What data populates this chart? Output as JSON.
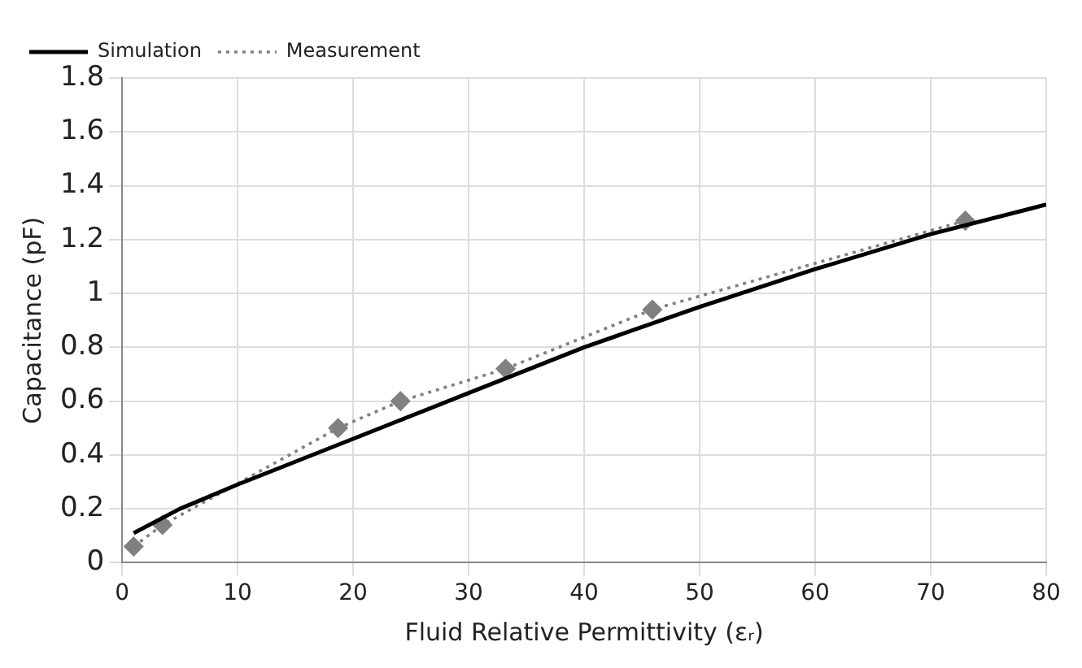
{
  "chart_data": {
    "type": "line",
    "xlabel": "Fluid Relative Permittivity (εᵣ)",
    "ylabel": "Capacitance (pF)",
    "xlim": [
      0,
      80
    ],
    "xticks": [
      0,
      10,
      20,
      30,
      40,
      50,
      60,
      70,
      80
    ],
    "ylim": [
      0,
      1.8
    ],
    "yticks": [
      0,
      0.2,
      0.4,
      0.6,
      0.8,
      1,
      1.2,
      1.4,
      1.6,
      1.8
    ],
    "grid": true,
    "legend": "top left",
    "series": [
      {
        "name": "Simulation",
        "color": "#000000",
        "marker": "none",
        "line_style": "solid",
        "x": [
          1,
          5,
          10,
          20,
          30,
          40,
          50,
          60,
          70,
          80
        ],
        "values": [
          0.11,
          0.2,
          0.29,
          0.46,
          0.63,
          0.8,
          0.95,
          1.09,
          1.22,
          1.33
        ]
      },
      {
        "name": "Measurement",
        "color": "#808080",
        "marker": "diamond",
        "line_style": "dotted",
        "x": [
          1,
          3.5,
          18.7,
          24.1,
          33.2,
          45.9,
          73
        ],
        "values": [
          0.06,
          0.14,
          0.5,
          0.6,
          0.72,
          0.94,
          1.27
        ]
      }
    ]
  }
}
